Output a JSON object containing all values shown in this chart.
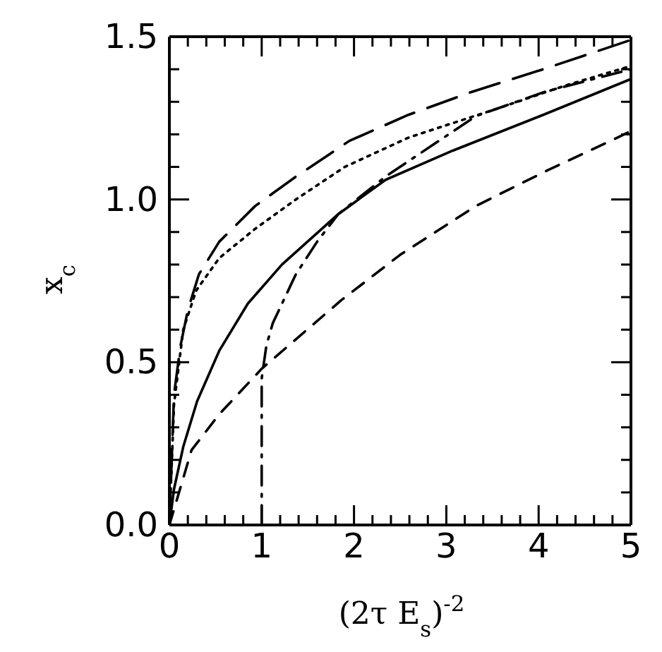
{
  "chart_data": {
    "type": "line",
    "xlabel": "(2τ E$_{s}$)$^{-2}$",
    "ylabel": "x$_{c}$",
    "xlim": [
      0,
      5
    ],
    "ylim": [
      0,
      1.5
    ],
    "xticks": [
      0,
      {
        "value": 0.2,
        "label": null
      },
      {
        "value": 0.4,
        "label": null
      },
      {
        "value": 0.6,
        "label": null
      },
      {
        "value": 0.8,
        "label": null
      },
      1,
      {
        "value": 1.2,
        "label": null
      },
      {
        "value": 1.4,
        "label": null
      },
      {
        "value": 1.6,
        "label": null
      },
      {
        "value": 1.8,
        "label": null
      },
      2,
      {
        "value": 2.2,
        "label": null
      },
      {
        "value": 2.4,
        "label": null
      },
      {
        "value": 2.6,
        "label": null
      },
      {
        "value": 2.8,
        "label": null
      },
      3,
      {
        "value": 3.2,
        "label": null
      },
      {
        "value": 3.4,
        "label": null
      },
      {
        "value": 3.6,
        "label": null
      },
      {
        "value": 3.8,
        "label": null
      },
      4,
      {
        "value": 4.2,
        "label": null
      },
      {
        "value": 4.4,
        "label": null
      },
      {
        "value": 4.6,
        "label": null
      },
      {
        "value": 4.8,
        "label": null
      },
      5
    ],
    "yticks": [
      {
        "value": 0,
        "label": "0.0"
      },
      {
        "value": 0.1,
        "label": null
      },
      {
        "value": 0.2,
        "label": null
      },
      {
        "value": 0.3,
        "label": null
      },
      {
        "value": 0.4,
        "label": null
      },
      {
        "value": 0.5,
        "label": "0.5"
      },
      {
        "value": 0.6,
        "label": null
      },
      {
        "value": 0.7,
        "label": null
      },
      {
        "value": 0.8,
        "label": null
      },
      {
        "value": 0.9,
        "label": null
      },
      {
        "value": 1,
        "label": "1.0"
      },
      {
        "value": 1.1,
        "label": null
      },
      {
        "value": 1.2,
        "label": null
      },
      {
        "value": 1.3,
        "label": null
      },
      {
        "value": 1.4,
        "label": null
      },
      {
        "value": 1.5,
        "label": "1.5"
      }
    ],
    "marker": "none",
    "series": [
      {
        "color": "#000000",
        "line_style": "longdashed",
        "x": [
          0,
          0.05,
          0.12,
          0.2,
          0.32,
          0.54,
          0.93,
          1.37,
          1.95,
          2.59,
          3.27,
          4.05,
          5
        ],
        "values": [
          0,
          0.4,
          0.55,
          0.66,
          0.77,
          0.87,
          0.98,
          1.07,
          1.18,
          1.26,
          1.33,
          1.4,
          1.49
        ]
      },
      {
        "color": "#000000",
        "line_style": "dotted",
        "x": [
          0,
          0.05,
          0.15,
          0.29,
          0.54,
          0.93,
          1.37,
          1.9,
          2.59,
          3.56,
          4.29,
          5
        ],
        "values": [
          0,
          0.37,
          0.6,
          0.72,
          0.82,
          0.91,
          1,
          1.1,
          1.19,
          1.28,
          1.35,
          1.41
        ]
      },
      {
        "color": "#000000",
        "line_style": "solid",
        "x": [
          0,
          0.05,
          0.15,
          0.3,
          0.54,
          0.85,
          1.22,
          1.83,
          2.34,
          3.07,
          4.05,
          5
        ],
        "values": [
          0,
          0.11,
          0.24,
          0.38,
          0.535,
          0.68,
          0.8,
          0.955,
          1.06,
          1.15,
          1.26,
          1.37
        ]
      },
      {
        "color": "#000000",
        "line_style": "dashdot",
        "x": [
          1,
          1,
          1.05,
          1.12,
          1.37,
          1.6,
          1.83,
          2.34,
          2.84,
          3.32,
          4.06,
          5
        ],
        "values": [
          0,
          0.45,
          0.55,
          0.62,
          0.77,
          0.87,
          0.955,
          1.07,
          1.165,
          1.256,
          1.33,
          1.4
        ]
      },
      {
        "color": "#000000",
        "line_style": "dashed",
        "x": [
          0,
          0.24,
          0.54,
          1,
          1.86,
          2.5,
          3.32,
          4.1,
          4.78,
          5
        ],
        "values": [
          0,
          0.23,
          0.34,
          0.48,
          0.69,
          0.83,
          0.98,
          1.09,
          1.18,
          1.21
        ]
      }
    ]
  }
}
